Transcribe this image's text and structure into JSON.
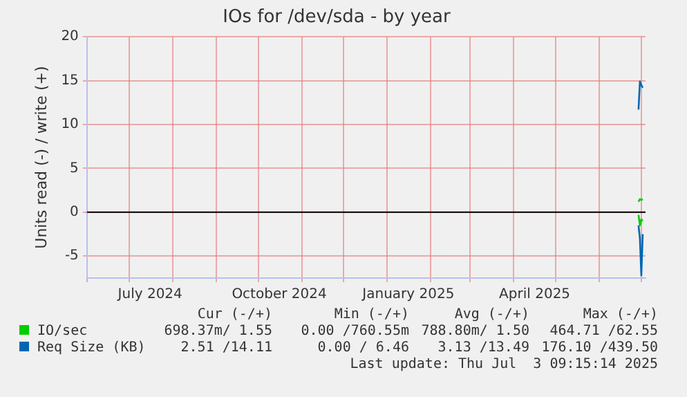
{
  "chart_data": {
    "type": "line",
    "title": "IOs for /dev/sda - by year",
    "ylabel": "Units read (-) / write (+)",
    "xlim": [
      "2024-06-01",
      "2025-07-04"
    ],
    "xticks": [
      {
        "value": "2024-06-01",
        "label": null
      },
      {
        "value": "2024-07-01",
        "label": null
      },
      {
        "value": "2024-07-16",
        "label": "July 2024"
      },
      {
        "value": "2024-08-01",
        "label": null
      },
      {
        "value": "2024-09-01",
        "label": null
      },
      {
        "value": "2024-10-01",
        "label": null
      },
      {
        "value": "2024-10-16",
        "label": "October 2024"
      },
      {
        "value": "2024-11-01",
        "label": null
      },
      {
        "value": "2024-12-01",
        "label": null
      },
      {
        "value": "2025-01-01",
        "label": null
      },
      {
        "value": "2025-01-16",
        "label": "January 2025"
      },
      {
        "value": "2025-02-01",
        "label": null
      },
      {
        "value": "2025-03-01",
        "label": null
      },
      {
        "value": "2025-04-01",
        "label": null
      },
      {
        "value": "2025-04-16",
        "label": "April 2025"
      },
      {
        "value": "2025-05-01",
        "label": null
      },
      {
        "value": "2025-06-01",
        "label": null
      },
      {
        "value": "2025-07-01",
        "label": null
      }
    ],
    "ylim": [
      -7.5,
      20
    ],
    "yticks": [
      -5,
      0,
      5,
      10,
      15,
      20
    ],
    "series": [
      {
        "name": "IO/sec",
        "color": "#00cc00",
        "x": [
          "2025-06-29",
          "2025-06-30",
          "2025-07-01",
          "2025-07-02",
          null,
          "2025-06-29",
          "2025-06-30",
          "2025-07-01",
          "2025-07-02"
        ],
        "values": [
          1.2,
          1.5,
          1.4,
          1.5,
          null,
          -0.3,
          -1.5,
          -0.8,
          -1.0
        ]
      },
      {
        "name": "Req Size (KB)",
        "color": "#0066b3",
        "x": [
          "2025-06-29",
          "2025-06-30",
          "2025-07-01",
          "2025-07-02",
          null,
          "2025-06-29",
          "2025-06-30",
          "2025-07-01",
          "2025-07-02"
        ],
        "values": [
          11.7,
          14.9,
          14.5,
          14.2,
          null,
          -1.5,
          -3,
          -7.2,
          -2.5
        ]
      }
    ],
    "ref_lines": [
      {
        "axis": "y",
        "value": 0,
        "color": "#000000"
      }
    ],
    "grid": true,
    "legend": "bottom left",
    "marker": "none",
    "line_style": "solid",
    "annotations": [
      "Cur (-/+)",
      "Min (-/+)",
      "Avg (-/+)",
      "Max (-/+)",
      "698.37m/ 1.55",
      "0.00 /760.55m",
      "788.80m/ 1.50",
      "464.71 /62.55",
      "2.51 /14.11",
      "0.00 / 6.46",
      "3.13 /13.49",
      "176.10 /439.50",
      "Last update: Thu Jul  3 09:15:14 2025"
    ]
  }
}
